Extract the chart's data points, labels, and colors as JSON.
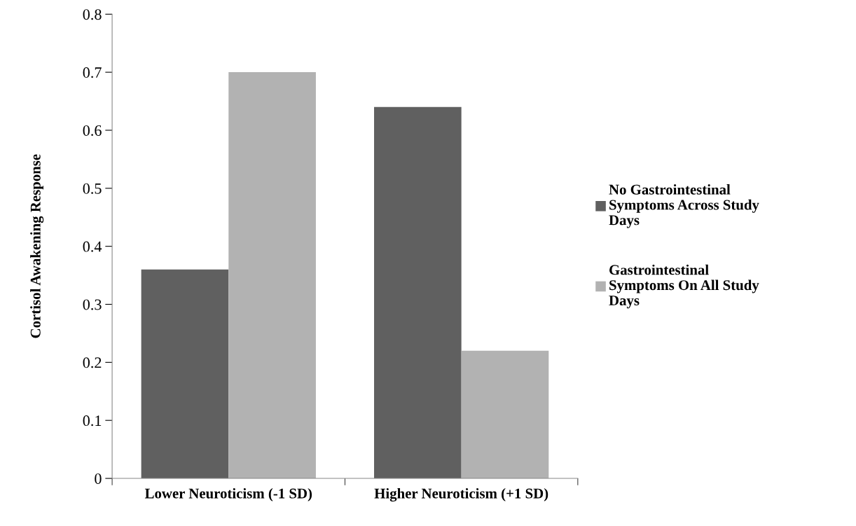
{
  "chart_data": {
    "type": "bar",
    "ylabel": "Cortisol Awakening Response",
    "categories": [
      "Lower Neuroticism (-1 SD)",
      "Higher Neuroticism (+1 SD)"
    ],
    "series": [
      {
        "name": "No Gastrointestinal Symptoms Across Study Days",
        "color": "#606060",
        "values": [
          0.36,
          0.64
        ]
      },
      {
        "name": "Gastrointestinal Symptoms On All Study Days",
        "color": "#b2b2b2",
        "values": [
          0.7,
          0.22
        ]
      }
    ],
    "ylim": [
      0,
      0.8
    ],
    "yticks": [
      0,
      0.1,
      0.2,
      0.3,
      0.4,
      0.5,
      0.6,
      0.7,
      0.8
    ],
    "grid": false,
    "legend": "right"
  }
}
